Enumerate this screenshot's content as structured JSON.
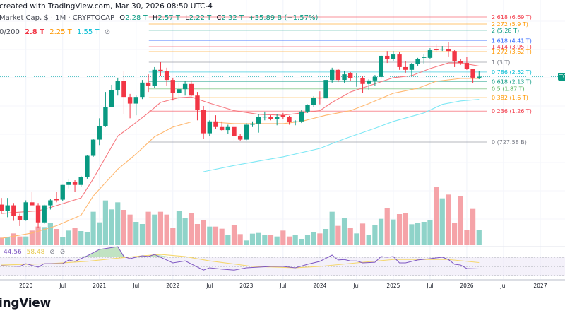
{
  "header": {
    "created_line": "created with TradingView.com, Mar 30, 2026 08:50 UTC-4",
    "symbol": "Market Cap, $ · 1M · CRYPTOCAP",
    "ohlc": {
      "o_label": "O",
      "o": "2.28 T",
      "h_label": "H",
      "h": "2.57 T",
      "l_label": "L",
      "l": "2.22 T",
      "c_label": "C",
      "c": "2.32 T",
      "change": "+35.89 B (+1.57%)"
    },
    "ma_legend": {
      "label": "0/200",
      "ma1": "2.8 T",
      "ma2": "2.25 T",
      "ma3": "1.55 T",
      "hide_icon": "⊘"
    }
  },
  "rsi_legend": {
    "rsi": "44.56",
    "rsi_ma": "58.48",
    "icon1": "⊘",
    "icon2": "⊘"
  },
  "price_badge": "TO",
  "logo_text": "ingView",
  "colors": {
    "up": "#089981",
    "down": "#f23645",
    "vol_up": "#8fd3c9",
    "vol_down": "#f5a3a8",
    "ma1": "#f7787f",
    "ma2": "#ffb870",
    "ma3": "#7fe8f5",
    "rsi": "#7e57c2",
    "rsi_ma": "#f5d76e",
    "rsi_band": "#ede7f6"
  },
  "chart_data": {
    "type": "candlestick",
    "interval": "1M",
    "y_scale": "log",
    "unit": "T",
    "x_ticks": [
      {
        "label": "2020",
        "date": "2020-01"
      },
      {
        "label": "Jul",
        "date": "2020-07"
      },
      {
        "label": "2021",
        "date": "2021-01"
      },
      {
        "label": "Jul",
        "date": "2021-07"
      },
      {
        "label": "2022",
        "date": "2022-01"
      },
      {
        "label": "Jul",
        "date": "2022-07"
      },
      {
        "label": "2023",
        "date": "2023-01"
      },
      {
        "label": "Jul",
        "date": "2023-07"
      },
      {
        "label": "2024",
        "date": "2024-01"
      },
      {
        "label": "Jul",
        "date": "2024-07"
      },
      {
        "label": "2025",
        "date": "2025-01"
      },
      {
        "label": "Jul",
        "date": "2025-07"
      },
      {
        "label": "2026",
        "date": "2026-01"
      },
      {
        "label": "Jul",
        "date": "2026-07"
      },
      {
        "label": "2027",
        "date": "2027-01"
      }
    ],
    "candles_columns": [
      "date",
      "open",
      "high",
      "low",
      "close",
      "volume_relative"
    ],
    "candles": [
      [
        "2019-09",
        0.24,
        0.27,
        0.204,
        0.214,
        32
      ],
      [
        "2019-10",
        0.214,
        0.27,
        0.192,
        0.237,
        34
      ],
      [
        "2019-11",
        0.237,
        0.247,
        0.18,
        0.197,
        50
      ],
      [
        "2019-12",
        0.197,
        0.204,
        0.164,
        0.182,
        37
      ],
      [
        "2020-01",
        0.182,
        0.259,
        0.18,
        0.25,
        37
      ],
      [
        "2020-02",
        0.25,
        0.3,
        0.237,
        0.237,
        62
      ],
      [
        "2020-03",
        0.237,
        0.247,
        0.16,
        0.175,
        79
      ],
      [
        "2020-04",
        0.175,
        0.24,
        0.17,
        0.237,
        77
      ],
      [
        "2020-05",
        0.237,
        0.265,
        0.22,
        0.259,
        95
      ],
      [
        "2020-06",
        0.265,
        0.3,
        0.25,
        0.259,
        69
      ],
      [
        "2020-07",
        0.262,
        0.34,
        0.255,
        0.34,
        34
      ],
      [
        "2020-08",
        0.34,
        0.38,
        0.32,
        0.36,
        62
      ],
      [
        "2020-09",
        0.36,
        0.37,
        0.3,
        0.34,
        72
      ],
      [
        "2020-10",
        0.34,
        0.4,
        0.33,
        0.39,
        60
      ],
      [
        "2020-11",
        0.39,
        0.58,
        0.38,
        0.57,
        55
      ],
      [
        "2020-12",
        0.57,
        0.77,
        0.56,
        0.76,
        142
      ],
      [
        "2021-01",
        0.76,
        1.11,
        0.69,
        0.96,
        97
      ],
      [
        "2021-02",
        0.96,
        1.77,
        0.95,
        1.36,
        190
      ],
      [
        "2021-03",
        1.36,
        2.01,
        1.38,
        1.82,
        152
      ],
      [
        "2021-04",
        1.82,
        2.28,
        1.66,
        2.14,
        182
      ],
      [
        "2021-05",
        2.14,
        2.58,
        1.19,
        1.62,
        150
      ],
      [
        "2021-06",
        1.62,
        1.71,
        1.11,
        1.44,
        130
      ],
      [
        "2021-07",
        1.44,
        1.66,
        1.17,
        1.62,
        99
      ],
      [
        "2021-08",
        1.62,
        2.19,
        1.56,
        2.09,
        90
      ],
      [
        "2021-09",
        2.09,
        2.42,
        1.77,
        1.96,
        142
      ],
      [
        "2021-10",
        1.96,
        2.75,
        1.89,
        2.62,
        130
      ],
      [
        "2021-11",
        2.62,
        3.0,
        2.36,
        2.58,
        142
      ],
      [
        "2021-12",
        2.58,
        2.72,
        1.96,
        2.19,
        130
      ],
      [
        "2022-01",
        2.19,
        2.28,
        1.52,
        1.73,
        72
      ],
      [
        "2022-02",
        1.73,
        2.06,
        1.52,
        1.86,
        144
      ],
      [
        "2022-03",
        1.86,
        2.14,
        1.66,
        2.04,
        117
      ],
      [
        "2022-04",
        2.04,
        2.17,
        1.64,
        1.66,
        137
      ],
      [
        "2022-05",
        1.66,
        1.77,
        1.07,
        1.28,
        90
      ],
      [
        "2022-06",
        1.28,
        1.38,
        0.77,
        0.85,
        107
      ],
      [
        "2022-07",
        0.85,
        1.07,
        0.81,
        1.05,
        79
      ],
      [
        "2022-08",
        1.05,
        1.17,
        0.92,
        0.95,
        79
      ],
      [
        "2022-09",
        0.95,
        1.05,
        0.88,
        0.9,
        70
      ],
      [
        "2022-10",
        0.9,
        0.99,
        0.84,
        0.95,
        42
      ],
      [
        "2022-11",
        0.95,
        1.01,
        0.74,
        0.81,
        87
      ],
      [
        "2022-12",
        0.81,
        0.84,
        0.74,
        0.76,
        47
      ],
      [
        "2023-01",
        0.76,
        1.02,
        0.75,
        0.99,
        20
      ],
      [
        "2023-02",
        0.99,
        1.05,
        0.95,
        1.01,
        49
      ],
      [
        "2023-03",
        1.01,
        1.19,
        0.86,
        1.14,
        52
      ],
      [
        "2023-04",
        1.14,
        1.25,
        1.07,
        1.14,
        42
      ],
      [
        "2023-05",
        1.14,
        1.17,
        1.07,
        1.1,
        44
      ],
      [
        "2023-06",
        1.1,
        1.19,
        0.98,
        1.14,
        37
      ],
      [
        "2023-07",
        1.17,
        1.22,
        1.1,
        1.14,
        62
      ],
      [
        "2023-08",
        1.13,
        1.16,
        0.99,
        1.04,
        37
      ],
      [
        "2023-09",
        1.04,
        1.07,
        0.98,
        1.05,
        42
      ],
      [
        "2023-10",
        1.05,
        1.28,
        1.02,
        1.25,
        27
      ],
      [
        "2023-11",
        1.25,
        1.42,
        1.22,
        1.4,
        42
      ],
      [
        "2023-12",
        1.4,
        1.64,
        1.36,
        1.6,
        54
      ],
      [
        "2024-01",
        1.6,
        1.79,
        1.42,
        1.58,
        50
      ],
      [
        "2024-02",
        1.58,
        2.25,
        1.54,
        2.19,
        69
      ],
      [
        "2024-03",
        2.19,
        2.72,
        2.09,
        2.62,
        142
      ],
      [
        "2024-04",
        2.62,
        2.65,
        2.11,
        2.19,
        82
      ],
      [
        "2024-05",
        2.19,
        2.58,
        2.09,
        2.42,
        115
      ],
      [
        "2024-06",
        2.46,
        2.52,
        2.14,
        2.25,
        72
      ],
      [
        "2024-07",
        2.25,
        2.46,
        1.94,
        2.28,
        50
      ],
      [
        "2024-08",
        2.25,
        2.33,
        1.73,
        2.04,
        92
      ],
      [
        "2024-09",
        2.04,
        2.22,
        1.84,
        2.17,
        42
      ],
      [
        "2024-10",
        2.17,
        2.39,
        1.96,
        2.31,
        85
      ],
      [
        "2024-11",
        2.31,
        3.4,
        2.22,
        3.36,
        112
      ],
      [
        "2024-12",
        3.36,
        3.66,
        2.96,
        3.19,
        157
      ],
      [
        "2025-01",
        3.19,
        3.66,
        3.07,
        3.44,
        109
      ],
      [
        "2025-02",
        3.44,
        3.58,
        2.62,
        2.75,
        132
      ],
      [
        "2025-03",
        2.75,
        3.04,
        2.49,
        2.62,
        137
      ],
      [
        "2025-04",
        2.62,
        2.96,
        2.33,
        2.89,
        89
      ],
      [
        "2025-05",
        2.89,
        3.24,
        2.82,
        3.19,
        94
      ],
      [
        "2025-06",
        3.24,
        3.44,
        2.93,
        3.28,
        99
      ],
      [
        "2025-07",
        3.24,
        3.85,
        3.19,
        3.71,
        107
      ],
      [
        "2025-08",
        3.76,
        4.15,
        3.62,
        3.71,
        247
      ],
      [
        "2025-09",
        3.76,
        4.0,
        3.66,
        3.8,
        199
      ],
      [
        "2025-10",
        3.8,
        4.26,
        3.32,
        3.66,
        215
      ],
      [
        "2025-11",
        3.66,
        3.71,
        2.75,
        3.04,
        96
      ],
      [
        "2025-12",
        3.04,
        3.19,
        2.86,
        2.96,
        210
      ],
      [
        "2026-01",
        2.96,
        3.28,
        2.62,
        2.68,
        64
      ],
      [
        "2026-02",
        2.65,
        2.68,
        2.06,
        2.28,
        154
      ],
      [
        "2026-03",
        2.28,
        2.57,
        2.22,
        2.32,
        65
      ]
    ],
    "moving_averages": [
      {
        "legend_value": "2.8 T",
        "color": "#f7787f",
        "points": [
          [
            "2019-09",
            0.205
          ],
          [
            "2020-03",
            0.215
          ],
          [
            "2020-05",
            0.228
          ],
          [
            "2020-10",
            0.27
          ],
          [
            "2020-12",
            0.38
          ],
          [
            "2021-04",
            0.81
          ],
          [
            "2021-06",
            0.95
          ],
          [
            "2021-09",
            1.22
          ],
          [
            "2021-11",
            1.47
          ],
          [
            "2022-02",
            1.6
          ],
          [
            "2022-04",
            1.62
          ],
          [
            "2022-07",
            1.45
          ],
          [
            "2022-11",
            1.27
          ],
          [
            "2023-03",
            1.19
          ],
          [
            "2023-07",
            1.17
          ],
          [
            "2023-10",
            1.22
          ],
          [
            "2024-01",
            1.27
          ],
          [
            "2024-03",
            1.47
          ],
          [
            "2024-06",
            1.77
          ],
          [
            "2025-01",
            2.28
          ],
          [
            "2025-04",
            2.36
          ],
          [
            "2025-07",
            2.68
          ],
          [
            "2025-10",
            2.96
          ],
          [
            "2025-12",
            2.96
          ],
          [
            "2026-03",
            2.8
          ]
        ]
      },
      {
        "legend_value": "2.25 T",
        "color": "#ffb870",
        "points": [
          [
            "2019-09",
            0.132
          ],
          [
            "2020-02",
            0.145
          ],
          [
            "2020-06",
            0.165
          ],
          [
            "2020-10",
            0.199
          ],
          [
            "2020-12",
            0.28
          ],
          [
            "2021-04",
            0.45
          ],
          [
            "2021-07",
            0.59
          ],
          [
            "2021-10",
            0.8
          ],
          [
            "2022-01",
            0.95
          ],
          [
            "2022-04",
            1.04
          ],
          [
            "2022-07",
            1.04
          ],
          [
            "2022-11",
            1.01
          ],
          [
            "2023-03",
            1.01
          ],
          [
            "2023-07",
            1.01
          ],
          [
            "2023-10",
            1.05
          ],
          [
            "2024-02",
            1.17
          ],
          [
            "2024-06",
            1.27
          ],
          [
            "2024-09",
            1.44
          ],
          [
            "2025-01",
            1.73
          ],
          [
            "2025-05",
            1.89
          ],
          [
            "2025-08",
            2.14
          ],
          [
            "2025-12",
            2.25
          ],
          [
            "2026-03",
            2.25
          ]
        ]
      },
      {
        "legend_value": "1.55 T",
        "color": "#7fe8f5",
        "points": [
          [
            "2022-06",
            0.43
          ],
          [
            "2022-11",
            0.48
          ],
          [
            "2023-03",
            0.52
          ],
          [
            "2023-07",
            0.56
          ],
          [
            "2024-01",
            0.65
          ],
          [
            "2024-05",
            0.77
          ],
          [
            "2024-10",
            0.93
          ],
          [
            "2025-01",
            1.05
          ],
          [
            "2025-06",
            1.22
          ],
          [
            "2025-09",
            1.42
          ],
          [
            "2025-12",
            1.51
          ],
          [
            "2026-03",
            1.55
          ]
        ]
      }
    ],
    "fib_levels": [
      {
        "label": "2.618 (6.69 T)",
        "value": 6.69,
        "color": "#f23645"
      },
      {
        "label": "2.272 (5.9 T)",
        "value": 5.9,
        "color": "#ff9800"
      },
      {
        "label": "2 (5.28 T)",
        "value": 5.28,
        "color": "#089981"
      },
      {
        "label": "1.618 (4.41 T)",
        "value": 4.41,
        "color": "#2962ff"
      },
      {
        "label": "1.414 (3.95 T)",
        "value": 3.95,
        "color": "#f23645"
      },
      {
        "label": "1.272 (3.62 T)",
        "value": 3.62,
        "color": "#ff9800"
      },
      {
        "label": "1 (3 T)",
        "value": 3.0,
        "color": "#787b86"
      },
      {
        "label": "0.786 (2.52 T)",
        "value": 2.52,
        "color": "#00bcd4"
      },
      {
        "label": "0.618 (2.13 T)",
        "value": 2.13,
        "color": "#089981"
      },
      {
        "label": "0.5 (1.87 T)",
        "value": 1.87,
        "color": "#4caf50"
      },
      {
        "label": "0.382 (1.6 T)",
        "value": 1.6,
        "color": "#ff9800"
      },
      {
        "label": "0.236 (1.26 T)",
        "value": 1.26,
        "color": "#f23645"
      },
      {
        "label": "0 (727.58 B)",
        "value": 0.72758,
        "color": "#787b86"
      }
    ],
    "fib_start": "2021-10",
    "rsi": {
      "levels": [
        70,
        50,
        30
      ],
      "points": [
        [
          "2019-09",
          51.5
        ],
        [
          "2019-12",
          50
        ],
        [
          "2020-01",
          56
        ],
        [
          "2020-03",
          48.5
        ],
        [
          "2020-04",
          56
        ],
        [
          "2020-07",
          56
        ],
        [
          "2020-08",
          64
        ],
        [
          "2020-09",
          61
        ],
        [
          "2020-11",
          73
        ],
        [
          "2021-01",
          87
        ],
        [
          "2021-04",
          93
        ],
        [
          "2021-05",
          71.5
        ],
        [
          "2021-06",
          67
        ],
        [
          "2021-08",
          73
        ],
        [
          "2021-09",
          71.5
        ],
        [
          "2021-10",
          76
        ],
        [
          "2022-01",
          57.7
        ],
        [
          "2022-03",
          62
        ],
        [
          "2022-06",
          42
        ],
        [
          "2022-07",
          47
        ],
        [
          "2022-09",
          44
        ],
        [
          "2022-11",
          42
        ],
        [
          "2023-01",
          47
        ],
        [
          "2023-05",
          50
        ],
        [
          "2023-07",
          50
        ],
        [
          "2023-09",
          47
        ],
        [
          "2023-11",
          54.6
        ],
        [
          "2024-01",
          61
        ],
        [
          "2024-03",
          74.6
        ],
        [
          "2024-04",
          64
        ],
        [
          "2024-05",
          65
        ],
        [
          "2024-06",
          62
        ],
        [
          "2024-07",
          62
        ],
        [
          "2024-08",
          57.7
        ],
        [
          "2024-10",
          59
        ],
        [
          "2024-11",
          71.5
        ],
        [
          "2024-12",
          70
        ],
        [
          "2025-01",
          71.5
        ],
        [
          "2025-02",
          57.7
        ],
        [
          "2025-03",
          57.7
        ],
        [
          "2025-05",
          64
        ],
        [
          "2025-07",
          67
        ],
        [
          "2025-09",
          70
        ],
        [
          "2025-10",
          65
        ],
        [
          "2025-11",
          54.6
        ],
        [
          "2025-12",
          53
        ],
        [
          "2026-01",
          45.4
        ],
        [
          "2026-03",
          44.56
        ]
      ],
      "ma_points": [
        [
          "2019-09",
          53
        ],
        [
          "2020-05",
          56
        ],
        [
          "2020-11",
          61
        ],
        [
          "2021-04",
          68
        ],
        [
          "2021-08",
          73
        ],
        [
          "2021-11",
          76
        ],
        [
          "2022-03",
          71.5
        ],
        [
          "2022-07",
          62
        ],
        [
          "2023-02",
          50
        ],
        [
          "2023-09",
          47
        ],
        [
          "2024-01",
          50
        ],
        [
          "2024-07",
          57.7
        ],
        [
          "2025-01",
          65
        ],
        [
          "2025-07",
          65
        ],
        [
          "2025-10",
          65
        ],
        [
          "2026-03",
          58.48
        ]
      ]
    }
  }
}
